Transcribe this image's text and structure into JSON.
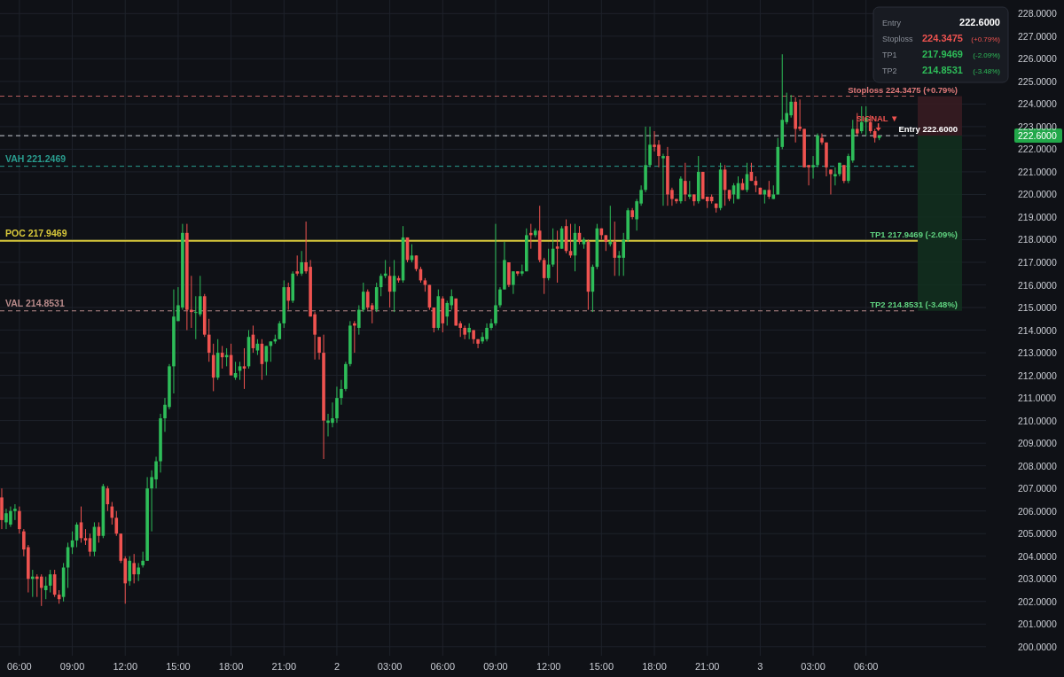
{
  "chart_data": {
    "type": "candlestick",
    "x": [
      "--10-01T05:00",
      "--10-01T05:15",
      "--10-01T05:30",
      "--10-01T05:45",
      "--10-01T06:00",
      "--10-01T06:15",
      "--10-01T06:30",
      "--10-01T06:45",
      "--10-01T07:00",
      "--10-01T07:15",
      "--10-01T07:30",
      "--10-01T07:45",
      "--10-01T08:00",
      "--10-01T08:15",
      "--10-01T08:30",
      "--10-01T08:45",
      "--10-01T09:00",
      "--10-01T09:15",
      "--10-01T09:30",
      "--10-01T09:45",
      "--10-01T10:00",
      "--10-01T10:15",
      "--10-01T10:30",
      "--10-01T10:45",
      "--10-01T11:00",
      "--10-01T11:15",
      "--10-01T11:30",
      "--10-01T11:45",
      "--10-01T12:00",
      "--10-01T12:15",
      "--10-01T12:30",
      "--10-01T12:45",
      "--10-01T13:00",
      "--10-01T13:15",
      "--10-01T13:30",
      "--10-01T13:45",
      "--10-01T14:00",
      "--10-01T14:15",
      "--10-01T14:30",
      "--10-01T14:45",
      "--10-01T15:00",
      "--10-01T15:15",
      "--10-01T15:30",
      "--10-01T15:45",
      "--10-01T16:00",
      "--10-01T16:15",
      "--10-01T16:30",
      "--10-01T16:45",
      "--10-01T17:00",
      "--10-01T17:15",
      "--10-01T17:30",
      "--10-01T17:45",
      "--10-01T18:00",
      "--10-01T18:15",
      "--10-01T18:30",
      "--10-01T18:45",
      "--10-01T19:00",
      "--10-01T19:15",
      "--10-01T19:30",
      "--10-01T19:45",
      "--10-01T20:00",
      "--10-01T20:15",
      "--10-01T20:30",
      "--10-01T20:45",
      "--10-01T21:00",
      "--10-01T21:15",
      "--10-01T21:30",
      "--10-01T21:45",
      "--10-01T22:00",
      "--10-01T22:15",
      "--10-01T22:30",
      "--10-01T22:45",
      "--10-01T23:00",
      "--10-01T23:15",
      "--10-01T23:30",
      "--10-01T23:45",
      "--10-02T00:00",
      "--10-02T00:15",
      "--10-02T00:30",
      "--10-02T00:45",
      "--10-02T01:00",
      "--10-02T01:15",
      "--10-02T01:30",
      "--10-02T01:45",
      "--10-02T02:00",
      "--10-02T02:15",
      "--10-02T02:30",
      "--10-02T02:45",
      "--10-02T03:00",
      "--10-02T03:15",
      "--10-02T03:30",
      "--10-02T03:45",
      "--10-02T04:00",
      "--10-02T04:15",
      "--10-02T04:30",
      "--10-02T04:45",
      "--10-02T05:00",
      "--10-02T05:15",
      "--10-02T05:30",
      "--10-02T05:45",
      "--10-02T06:00",
      "--10-02T06:15",
      "--10-02T06:30",
      "--10-02T06:45",
      "--10-02T07:00",
      "--10-02T07:15",
      "--10-02T07:30",
      "--10-02T07:45",
      "--10-02T08:00",
      "--10-02T08:15",
      "--10-02T08:30",
      "--10-02T08:45",
      "--10-02T09:00",
      "--10-02T09:15",
      "--10-02T09:30",
      "--10-02T09:45",
      "--10-02T10:00",
      "--10-02T10:15",
      "--10-02T10:30",
      "--10-02T10:45",
      "--10-02T11:00",
      "--10-02T11:15",
      "--10-02T11:30",
      "--10-02T11:45",
      "--10-02T12:00",
      "--10-02T12:15",
      "--10-02T12:30",
      "--10-02T12:45",
      "--10-02T13:00",
      "--10-02T13:15",
      "--10-02T13:30",
      "--10-02T13:45",
      "--10-02T14:00",
      "--10-02T14:15",
      "--10-02T14:30",
      "--10-02T14:45",
      "--10-02T15:00",
      "--10-02T15:15",
      "--10-02T15:30",
      "--10-02T15:45",
      "--10-02T16:00",
      "--10-02T16:15",
      "--10-02T16:30",
      "--10-02T16:45",
      "--10-02T17:00",
      "--10-02T17:15",
      "--10-02T17:30",
      "--10-02T17:45",
      "--10-02T18:00",
      "--10-02T18:15",
      "--10-02T18:30",
      "--10-02T18:45",
      "--10-02T19:00",
      "--10-02T19:15",
      "--10-02T19:30",
      "--10-02T19:45",
      "--10-02T20:00",
      "--10-02T20:15",
      "--10-02T20:30",
      "--10-02T20:45",
      "--10-02T21:00",
      "--10-02T21:15",
      "--10-02T21:30",
      "--10-02T21:45",
      "--10-02T22:00",
      "--10-02T22:15",
      "--10-02T22:30",
      "--10-02T22:45",
      "--10-02T23:00",
      "--10-02T23:15",
      "--10-02T23:30",
      "--10-02T23:45",
      "--10-03T00:00",
      "--10-03T00:15",
      "--10-03T00:30",
      "--10-03T00:45",
      "--10-03T01:00",
      "--10-03T01:15",
      "--10-03T01:30",
      "--10-03T01:45",
      "--10-03T02:00",
      "--10-03T02:15",
      "--10-03T02:30",
      "--10-03T02:45",
      "--10-03T03:00",
      "--10-03T03:15",
      "--10-03T03:30",
      "--10-03T03:45",
      "--10-03T04:00",
      "--10-03T04:15",
      "--10-03T04:30",
      "--10-03T04:45",
      "--10-03T05:00",
      "--10-03T05:15",
      "--10-03T05:30",
      "--10-03T05:45",
      "--10-03T06:00",
      "--10-03T06:15",
      "--10-03T06:30",
      "--10-03T06:45"
    ],
    "ohlc": [
      [
        206.6,
        207.0,
        205.2,
        205.6
      ],
      [
        205.5,
        206.1,
        205.2,
        205.9
      ],
      [
        205.4,
        206.2,
        205.3,
        206.0
      ],
      [
        206.0,
        206.3,
        205.6,
        206.1
      ],
      [
        206.0,
        206.2,
        205.0,
        205.2
      ],
      [
        205.1,
        205.2,
        204.0,
        204.3
      ],
      [
        204.4,
        204.5,
        202.4,
        203.0
      ],
      [
        203.0,
        203.4,
        202.2,
        203.1
      ],
      [
        203.1,
        203.2,
        202.2,
        203.0
      ],
      [
        203.1,
        203.2,
        201.8,
        202.6
      ],
      [
        202.5,
        203.1,
        202.1,
        202.7
      ],
      [
        202.7,
        203.4,
        202.4,
        203.2
      ],
      [
        203.2,
        203.4,
        202.2,
        202.3
      ],
      [
        202.3,
        202.5,
        201.9,
        202.1
      ],
      [
        202.2,
        203.7,
        202.0,
        203.5
      ],
      [
        203.5,
        204.6,
        202.6,
        204.4
      ],
      [
        204.4,
        205.1,
        204.1,
        204.7
      ],
      [
        204.7,
        205.5,
        204.4,
        205.4
      ],
      [
        205.5,
        206.2,
        204.6,
        204.8
      ],
      [
        204.8,
        205.2,
        204.5,
        204.7
      ],
      [
        204.8,
        205.0,
        204.0,
        204.2
      ],
      [
        204.2,
        205.5,
        204.0,
        205.3
      ],
      [
        205.3,
        205.5,
        204.6,
        204.9
      ],
      [
        204.9,
        207.2,
        204.8,
        207.1
      ],
      [
        207.0,
        207.1,
        206.0,
        206.3
      ],
      [
        206.2,
        206.4,
        205.4,
        205.7
      ],
      [
        205.7,
        206.0,
        204.9,
        205.0
      ],
      [
        205.0,
        205.0,
        203.7,
        203.8
      ],
      [
        203.9,
        204.0,
        201.9,
        202.8
      ],
      [
        202.9,
        204.0,
        202.7,
        203.8
      ],
      [
        203.7,
        204.1,
        202.8,
        203.2
      ],
      [
        203.2,
        203.7,
        202.9,
        203.5
      ],
      [
        203.6,
        204.2,
        203.5,
        203.8
      ],
      [
        203.8,
        207.5,
        203.8,
        207.0
      ],
      [
        207.0,
        207.8,
        205.1,
        207.5
      ],
      [
        207.4,
        208.4,
        207.0,
        208.2
      ],
      [
        208.2,
        210.3,
        207.7,
        210.1
      ],
      [
        210.1,
        211.0,
        209.5,
        210.7
      ],
      [
        210.6,
        212.5,
        210.5,
        212.4
      ],
      [
        212.4,
        215.8,
        211.2,
        214.6
      ],
      [
        214.4,
        215.9,
        214.4,
        215.1
      ],
      [
        215.0,
        218.7,
        214.9,
        218.3
      ],
      [
        218.3,
        218.7,
        214.0,
        214.9
      ],
      [
        214.9,
        216.4,
        214.1,
        214.8
      ],
      [
        214.8,
        215.5,
        213.6,
        214.8
      ],
      [
        214.7,
        216.4,
        214.6,
        215.5
      ],
      [
        215.5,
        215.6,
        213.7,
        213.8
      ],
      [
        213.8,
        214.5,
        212.6,
        213.0
      ],
      [
        212.9,
        213.4,
        211.3,
        211.9
      ],
      [
        211.9,
        213.6,
        211.8,
        213.0
      ],
      [
        213.0,
        213.3,
        212.3,
        212.8
      ],
      [
        212.8,
        213.2,
        212.4,
        212.9
      ],
      [
        212.9,
        213.4,
        212.0,
        212.0
      ],
      [
        211.9,
        212.6,
        211.8,
        212.1
      ],
      [
        212.2,
        212.6,
        211.8,
        212.4
      ],
      [
        212.4,
        213.2,
        211.4,
        212.3
      ],
      [
        212.4,
        214.0,
        212.3,
        213.7
      ],
      [
        213.8,
        214.2,
        213.0,
        213.2
      ],
      [
        213.1,
        213.6,
        212.9,
        213.4
      ],
      [
        213.4,
        213.6,
        211.8,
        212.5
      ],
      [
        212.6,
        213.3,
        212.0,
        213.3
      ],
      [
        213.3,
        213.5,
        212.6,
        213.5
      ],
      [
        213.5,
        213.8,
        213.4,
        213.6
      ],
      [
        213.6,
        214.4,
        213.6,
        214.3
      ],
      [
        214.3,
        216.2,
        214.1,
        215.9
      ],
      [
        215.9,
        216.1,
        214.9,
        215.3
      ],
      [
        215.3,
        216.6,
        215.2,
        216.5
      ],
      [
        216.6,
        217.3,
        216.4,
        216.5
      ],
      [
        216.5,
        217.5,
        216.4,
        217.0
      ],
      [
        217.0,
        218.8,
        216.5,
        216.6
      ],
      [
        216.8,
        217.1,
        214.6,
        214.6
      ],
      [
        214.7,
        214.8,
        212.7,
        213.8
      ],
      [
        213.7,
        213.7,
        212.7,
        213.0
      ],
      [
        213.0,
        213.8,
        208.3,
        210.0
      ],
      [
        209.9,
        210.3,
        209.3,
        210.0
      ],
      [
        209.9,
        210.8,
        209.7,
        210.1
      ],
      [
        210.1,
        211.5,
        209.9,
        211.0
      ],
      [
        211.0,
        211.8,
        210.7,
        211.4
      ],
      [
        211.4,
        212.6,
        211.3,
        212.5
      ],
      [
        212.5,
        214.4,
        212.4,
        214.2
      ],
      [
        214.3,
        214.4,
        213.0,
        214.2
      ],
      [
        214.1,
        215.1,
        213.8,
        214.9
      ],
      [
        214.9,
        216.1,
        214.8,
        215.7
      ],
      [
        215.7,
        215.8,
        214.9,
        215.0
      ],
      [
        215.1,
        215.2,
        214.3,
        214.9
      ],
      [
        214.9,
        216.1,
        214.8,
        215.9
      ],
      [
        215.9,
        216.5,
        215.5,
        216.4
      ],
      [
        216.4,
        217.1,
        216.3,
        216.5
      ],
      [
        216.4,
        216.8,
        215.0,
        215.7
      ],
      [
        215.7,
        217.1,
        214.8,
        216.4
      ],
      [
        216.3,
        216.4,
        216.1,
        216.2
      ],
      [
        216.2,
        218.6,
        216.1,
        218.1
      ],
      [
        218.1,
        218.1,
        217.0,
        217.1
      ],
      [
        217.1,
        217.8,
        217.0,
        217.3
      ],
      [
        217.3,
        217.3,
        216.6,
        216.7
      ],
      [
        216.7,
        216.8,
        216.1,
        216.2
      ],
      [
        216.2,
        216.3,
        215.7,
        216.0
      ],
      [
        216.0,
        216.0,
        214.9,
        215.0
      ],
      [
        215.0,
        215.0,
        213.9,
        214.1
      ],
      [
        214.1,
        215.8,
        214.0,
        215.5
      ],
      [
        215.4,
        215.5,
        213.9,
        214.3
      ],
      [
        214.6,
        215.3,
        214.2,
        215.2
      ],
      [
        215.1,
        215.8,
        214.9,
        215.5
      ],
      [
        215.4,
        215.4,
        214.2,
        214.2
      ],
      [
        214.3,
        214.4,
        213.7,
        214.1
      ],
      [
        214.1,
        214.2,
        213.6,
        213.8
      ],
      [
        213.9,
        214.3,
        213.6,
        214.1
      ],
      [
        214.0,
        214.0,
        213.4,
        213.6
      ],
      [
        213.6,
        213.6,
        213.2,
        213.4
      ],
      [
        213.5,
        213.9,
        213.4,
        213.7
      ],
      [
        213.6,
        214.3,
        213.5,
        214.1
      ],
      [
        214.1,
        214.5,
        214.0,
        214.3
      ],
      [
        214.3,
        218.7,
        214.2,
        215.1
      ],
      [
        215.1,
        215.9,
        215.0,
        215.8
      ],
      [
        215.8,
        217.9,
        215.8,
        217.1
      ],
      [
        217.0,
        217.0,
        215.9,
        216.0
      ],
      [
        216.0,
        216.6,
        215.6,
        216.6
      ],
      [
        216.6,
        216.6,
        216.4,
        216.5
      ],
      [
        216.5,
        216.9,
        216.4,
        216.6
      ],
      [
        216.6,
        218.5,
        216.6,
        218.2
      ],
      [
        218.3,
        218.7,
        217.6,
        218.2
      ],
      [
        218.2,
        218.5,
        218.1,
        218.4
      ],
      [
        218.4,
        219.5,
        217.0,
        217.1
      ],
      [
        217.1,
        217.2,
        215.6,
        216.3
      ],
      [
        216.3,
        217.6,
        216.2,
        216.9
      ],
      [
        216.9,
        218.5,
        216.8,
        217.6
      ],
      [
        217.7,
        218.4,
        216.1,
        217.6
      ],
      [
        217.6,
        218.6,
        217.6,
        218.5
      ],
      [
        218.6,
        218.9,
        217.4,
        217.5
      ],
      [
        217.5,
        218.7,
        217.2,
        217.3
      ],
      [
        217.3,
        218.7,
        216.6,
        218.3
      ],
      [
        218.3,
        218.6,
        217.8,
        217.9
      ],
      [
        217.8,
        218.1,
        217.6,
        218.0
      ],
      [
        217.9,
        218.0,
        214.9,
        215.7
      ],
      [
        215.7,
        216.9,
        214.8,
        216.8
      ],
      [
        216.8,
        218.7,
        216.7,
        218.5
      ],
      [
        218.5,
        218.5,
        218.0,
        218.2
      ],
      [
        218.2,
        218.2,
        217.5,
        217.9
      ],
      [
        217.8,
        219.5,
        217.7,
        217.9
      ],
      [
        217.9,
        218.8,
        216.4,
        217.2
      ],
      [
        217.2,
        217.5,
        216.4,
        217.3
      ],
      [
        217.2,
        218.3,
        216.4,
        218.0
      ],
      [
        218.0,
        219.4,
        217.9,
        219.3
      ],
      [
        219.3,
        219.4,
        218.9,
        219.0
      ],
      [
        218.9,
        219.8,
        218.4,
        219.7
      ],
      [
        219.6,
        220.4,
        219.5,
        220.2
      ],
      [
        220.2,
        223.0,
        220.1,
        221.3
      ],
      [
        221.3,
        223.0,
        221.2,
        222.2
      ],
      [
        222.2,
        222.8,
        221.9,
        222.1
      ],
      [
        222.2,
        222.4,
        221.2,
        221.7
      ],
      [
        221.6,
        221.8,
        219.5,
        221.7
      ],
      [
        221.7,
        222.1,
        219.5,
        220.0
      ],
      [
        220.2,
        220.3,
        219.5,
        219.8
      ],
      [
        219.8,
        219.8,
        219.6,
        219.7
      ],
      [
        219.7,
        220.8,
        219.6,
        220.7
      ],
      [
        220.6,
        221.4,
        219.7,
        220.0
      ],
      [
        219.9,
        220.6,
        219.8,
        220.0
      ],
      [
        220.0,
        220.0,
        219.5,
        219.7
      ],
      [
        219.7,
        221.7,
        219.6,
        221.0
      ],
      [
        221.0,
        221.0,
        219.8,
        219.8
      ],
      [
        219.9,
        219.9,
        219.4,
        219.7
      ],
      [
        219.9,
        220.0,
        219.6,
        219.7
      ],
      [
        219.6,
        219.6,
        219.2,
        219.4
      ],
      [
        219.4,
        221.4,
        219.3,
        221.1
      ],
      [
        221.1,
        221.3,
        219.5,
        220.2
      ],
      [
        220.2,
        220.2,
        219.7,
        219.8
      ],
      [
        220.0,
        220.5,
        219.6,
        220.4
      ],
      [
        219.8,
        220.8,
        219.8,
        220.5
      ],
      [
        220.5,
        220.7,
        220.2,
        220.2
      ],
      [
        220.2,
        221.4,
        220.1,
        220.9
      ],
      [
        221.0,
        221.4,
        220.6,
        220.6
      ],
      [
        220.6,
        220.8,
        220.1,
        220.4
      ],
      [
        220.3,
        220.3,
        220.0,
        220.0
      ],
      [
        220.0,
        220.2,
        219.6,
        220.2
      ],
      [
        220.2,
        220.6,
        219.8,
        219.9
      ],
      [
        219.8,
        220.4,
        219.8,
        220.0
      ],
      [
        220.0,
        222.5,
        220.0,
        222.1
      ],
      [
        222.1,
        226.2,
        222.0,
        223.3
      ],
      [
        223.2,
        224.5,
        223.1,
        223.6
      ],
      [
        223.5,
        224.4,
        223.4,
        224.1
      ],
      [
        224.1,
        224.3,
        222.3,
        222.9
      ],
      [
        223.0,
        224.2,
        222.8,
        222.9
      ],
      [
        222.9,
        222.9,
        221.2,
        221.2
      ],
      [
        221.3,
        221.3,
        220.4,
        221.2
      ],
      [
        221.2,
        221.7,
        220.7,
        221.3
      ],
      [
        221.3,
        222.7,
        221.2,
        222.6
      ],
      [
        222.5,
        222.7,
        222.2,
        222.3
      ],
      [
        222.3,
        222.3,
        220.8,
        221.2
      ],
      [
        221.1,
        221.1,
        220.0,
        220.9
      ],
      [
        220.8,
        221.2,
        220.4,
        220.9
      ],
      [
        220.9,
        221.4,
        220.8,
        221.4
      ],
      [
        221.3,
        221.3,
        220.5,
        220.6
      ],
      [
        220.6,
        221.8,
        220.5,
        221.7
      ],
      [
        221.5,
        223.3,
        221.4,
        222.9
      ],
      [
        222.9,
        223.6,
        222.6,
        222.7
      ],
      [
        222.8,
        223.9,
        222.7,
        223.2
      ],
      [
        223.2,
        223.9,
        222.6,
        223.4
      ],
      [
        223.2,
        223.5,
        222.7,
        222.8
      ],
      [
        222.8,
        222.9,
        222.3,
        222.5
      ],
      [
        222.5,
        222.6,
        222.4,
        222.6
      ]
    ],
    "xlim": [
      "--10-01T04:54",
      "--10-03T12:48"
    ],
    "xticks": [
      {
        "value": "--10-01T06:00",
        "label": "06:00"
      },
      {
        "value": "--10-01T09:00",
        "label": "09:00"
      },
      {
        "value": "--10-01T12:00",
        "label": "12:00"
      },
      {
        "value": "--10-01T15:00",
        "label": "15:00"
      },
      {
        "value": "--10-01T18:00",
        "label": "18:00"
      },
      {
        "value": "--10-01T21:00",
        "label": "21:00"
      },
      {
        "value": "--10-02T00:00",
        "label": "2"
      },
      {
        "value": "--10-02T03:00",
        "label": "03:00"
      },
      {
        "value": "--10-02T06:00",
        "label": "06:00"
      },
      {
        "value": "--10-02T09:00",
        "label": "09:00"
      },
      {
        "value": "--10-02T12:00",
        "label": "12:00"
      },
      {
        "value": "--10-02T15:00",
        "label": "15:00"
      },
      {
        "value": "--10-02T18:00",
        "label": "18:00"
      },
      {
        "value": "--10-02T21:00",
        "label": "21:00"
      },
      {
        "value": "--10-03T00:00",
        "label": "3"
      },
      {
        "value": "--10-03T03:00",
        "label": "03:00"
      },
      {
        "value": "--10-03T06:00",
        "label": "06:00"
      }
    ],
    "ylim": [
      199.6,
      228.6
    ],
    "yticks": [
      {
        "value": 200,
        "label": "200.0000"
      },
      {
        "value": 201,
        "label": "201.0000"
      },
      {
        "value": 202,
        "label": "202.0000"
      },
      {
        "value": 203,
        "label": "203.0000"
      },
      {
        "value": 204,
        "label": "204.0000"
      },
      {
        "value": 205,
        "label": "205.0000"
      },
      {
        "value": 206,
        "label": "206.0000"
      },
      {
        "value": 207,
        "label": "207.0000"
      },
      {
        "value": 208,
        "label": "208.0000"
      },
      {
        "value": 209,
        "label": "209.0000"
      },
      {
        "value": 210,
        "label": "210.0000"
      },
      {
        "value": 211,
        "label": "211.0000"
      },
      {
        "value": 212,
        "label": "212.0000"
      },
      {
        "value": 213,
        "label": "213.0000"
      },
      {
        "value": 214,
        "label": "214.0000"
      },
      {
        "value": 215,
        "label": "215.0000"
      },
      {
        "value": 216,
        "label": "216.0000"
      },
      {
        "value": 217,
        "label": "217.0000"
      },
      {
        "value": 218,
        "label": "218.0000"
      },
      {
        "value": 219,
        "label": "219.0000"
      },
      {
        "value": 220,
        "label": "220.0000"
      },
      {
        "value": 221,
        "label": "221.0000"
      },
      {
        "value": 222,
        "label": "222.0000"
      },
      {
        "value": 222.6,
        "label": "222.6000"
      },
      {
        "value": 223,
        "label": "223.0000"
      },
      {
        "value": 224,
        "label": "224.0000"
      },
      {
        "value": 225,
        "label": "225.0000"
      },
      {
        "value": 226,
        "label": "226.0000"
      },
      {
        "value": 227,
        "label": "227.0000"
      },
      {
        "value": 228,
        "label": "228.0000"
      }
    ],
    "grid": true,
    "ref_lines": [
      {
        "axis": "y",
        "value": 224.3475,
        "label": null,
        "color": "#b85c5c",
        "line_style": "dashed"
      },
      {
        "axis": "y",
        "value": 222.6,
        "label": null,
        "color": "#c8ccd0",
        "line_style": "dashed"
      },
      {
        "axis": "y",
        "value": 221.2469,
        "label": "VAH  221.2469",
        "color": "#2a9d8f",
        "line_style": "dashed"
      },
      {
        "axis": "y",
        "value": 217.9469,
        "label": "POC  217.9469",
        "color": "#d8c83a",
        "line_style": "solid"
      },
      {
        "axis": "y",
        "value": 214.8531,
        "label": "VAL  214.8531",
        "color": "#b88a8a",
        "line_style": "dashed"
      }
    ],
    "annotations": [
      "Entry",
      "222.6000",
      "Stoploss",
      "224.3475",
      "(+0.79%)",
      "TP1",
      "217.9469",
      "(-2.09%)",
      "TP2",
      "214.8531",
      "(-3.48%)",
      "Stoploss 224.3475 (+0.79%)",
      "Entry 222.6000",
      "TP1 217.9469 (-2.09%)",
      "TP2 214.8531 (-3.48%)",
      "SIGNAL ▼"
    ]
  }
}
